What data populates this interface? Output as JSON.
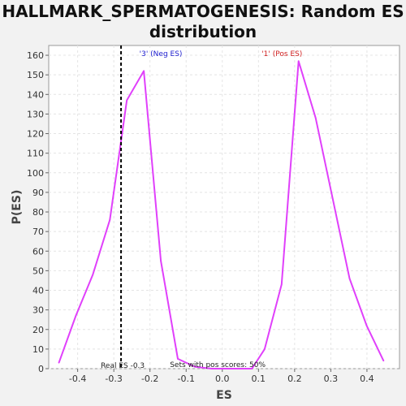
{
  "title_line1": "HALLMARK_SPERMATOGENESIS: Random ES",
  "title_line2": "distribution",
  "chart_data": {
    "type": "line",
    "xlabel": "ES",
    "ylabel": "P(ES)",
    "xlim": [
      -0.48,
      0.49
    ],
    "ylim": [
      0,
      165
    ],
    "x_ticks": [
      -0.4,
      -0.3,
      -0.2,
      -0.1,
      0.0,
      0.1,
      0.2,
      0.3,
      0.4
    ],
    "x_tick_labels": [
      "-0.4",
      "-0.3",
      "-0.2",
      "-0.1",
      "0.0",
      "0.1",
      "0.2",
      "0.3",
      "0.4"
    ],
    "y_ticks": [
      0,
      10,
      20,
      30,
      40,
      50,
      60,
      70,
      80,
      90,
      100,
      110,
      120,
      130,
      140,
      150,
      160
    ],
    "grid": true,
    "line_color": "#e040fb",
    "series": [
      {
        "x": [
          -0.452,
          -0.405,
          -0.358,
          -0.311,
          -0.264,
          -0.217,
          -0.17,
          -0.123,
          -0.076,
          -0.029,
          0.018,
          0.065,
          0.082,
          0.117,
          0.164,
          0.211,
          0.258,
          0.305,
          0.352,
          0.399,
          0.446
        ],
        "y": [
          3,
          27,
          48,
          76,
          137,
          152,
          55,
          5,
          1,
          0,
          0,
          0,
          0,
          10,
          43,
          157,
          128,
          87,
          46,
          22,
          4
        ]
      }
    ],
    "real_es": -0.28,
    "annotations": {
      "neg": "'3' (Neg ES)",
      "pos": "'1' (Pos ES)",
      "real_es": "Real ES -0.3",
      "sets": "Sets with pos scores: 50%"
    },
    "annotation_colors": {
      "neg": "#2020d0",
      "pos": "#d02020",
      "text": "#222222"
    }
  }
}
